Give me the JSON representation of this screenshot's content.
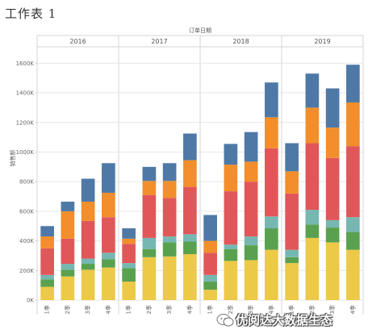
{
  "sheet": {
    "title": "工作表 1",
    "watermark": "优阅达大数据生态"
  },
  "colors": {
    "gridline": "#e6e6e6",
    "divider": "#d4d4d4",
    "axis_text": "#666666",
    "header_text": "#555555"
  },
  "chart_data": {
    "type": "bar",
    "stacked": true,
    "column_header_title": "订单日期",
    "ylabel": "销售额",
    "ylim": [
      0,
      1700
    ],
    "yticks": [
      {
        "value": 0,
        "label": "0K"
      },
      {
        "value": 200,
        "label": "200K"
      },
      {
        "value": 400,
        "label": "400K"
      },
      {
        "value": 600,
        "label": "600K"
      },
      {
        "value": 800,
        "label": "800K"
      },
      {
        "value": 1000,
        "label": "1000K"
      },
      {
        "value": 1200,
        "label": "1200K"
      },
      {
        "value": 1400,
        "label": "1400K"
      },
      {
        "value": 1600,
        "label": "1600K"
      }
    ],
    "grid": true,
    "years": [
      "2016",
      "2017",
      "2018",
      "2019"
    ],
    "categories": [
      "1季",
      "2季",
      "3季",
      "4季",
      "1季",
      "2季",
      "3季",
      "4季",
      "1季",
      "2季",
      "3季",
      "4季",
      "1季",
      "2季",
      "3季",
      "4季"
    ],
    "series": [
      {
        "color": "#edc948",
        "values": [
          90,
          160,
          205,
          220,
          125,
          290,
          295,
          310,
          70,
          265,
          270,
          340,
          250,
          420,
          390,
          340
        ]
      },
      {
        "color": "#59a14f",
        "values": [
          50,
          45,
          40,
          55,
          90,
          55,
          95,
          85,
          55,
          80,
          100,
          145,
          40,
          90,
          100,
          120
        ]
      },
      {
        "color": "#76b7b2",
        "values": [
          30,
          40,
          35,
          45,
          35,
          75,
          40,
          50,
          45,
          30,
          60,
          80,
          50,
          100,
          50,
          100
        ]
      },
      {
        "color": "#e15759",
        "values": [
          180,
          170,
          255,
          240,
          130,
          290,
          260,
          320,
          150,
          360,
          370,
          460,
          380,
          450,
          420,
          480
        ]
      },
      {
        "color": "#f28e2b",
        "values": [
          80,
          185,
          130,
          165,
          35,
          95,
          115,
          180,
          80,
          180,
          135,
          210,
          150,
          240,
          205,
          295
        ]
      },
      {
        "color": "#4e79a7",
        "values": [
          70,
          65,
          155,
          200,
          70,
          95,
          120,
          180,
          175,
          140,
          200,
          235,
          190,
          230,
          265,
          255
        ]
      }
    ]
  }
}
